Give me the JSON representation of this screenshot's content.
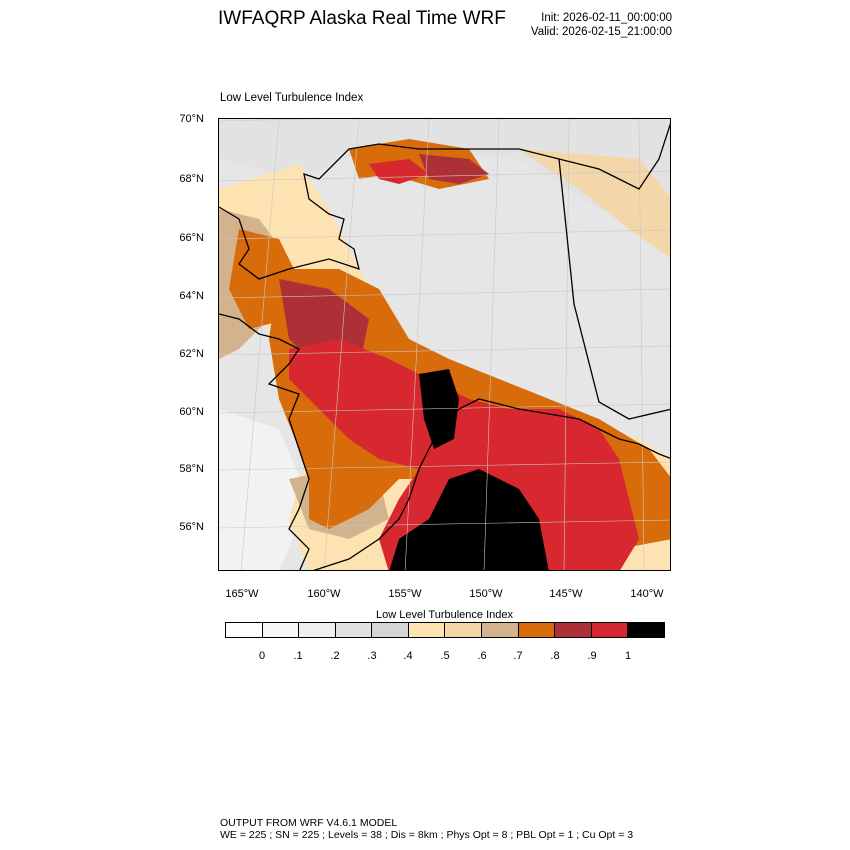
{
  "header": {
    "title": "IWFAQRP Alaska Real Time WRF",
    "init": "Init: 2026-02-11_00:00:00",
    "valid": "Valid: 2026-02-15_21:00:00"
  },
  "map": {
    "field_title": "Low Level Turbulence Index",
    "lat_labels": [
      "70°N",
      "68°N",
      "66°N",
      "64°N",
      "62°N",
      "60°N",
      "58°N",
      "56°N"
    ],
    "lon_labels": [
      "165°W",
      "160°W",
      "155°W",
      "150°W",
      "145°W",
      "140°W"
    ]
  },
  "colorbar": {
    "title": "Low Level Turbulence Index",
    "labels": [
      "0",
      ".1",
      ".2",
      ".3",
      ".4",
      ".5",
      ".6",
      ".7",
      ".8",
      ".9",
      "1"
    ],
    "colors": [
      "#ffffff",
      "#f7f7f7",
      "#efefef",
      "#e2e2e2",
      "#d5d5d5",
      "#fde3b1",
      "#f3d7a8",
      "#d2b38d",
      "#d86b0a",
      "#ad3036",
      "#d6282e",
      "#000000"
    ]
  },
  "footer": {
    "line1": "OUTPUT FROM WRF V4.6.1 MODEL",
    "line2": "WE = 225 ; SN = 225 ; Levels = 38 ; Dis = 8km ; Phys Opt = 8 ; PBL Opt = 1 ; Cu Opt = 3"
  }
}
